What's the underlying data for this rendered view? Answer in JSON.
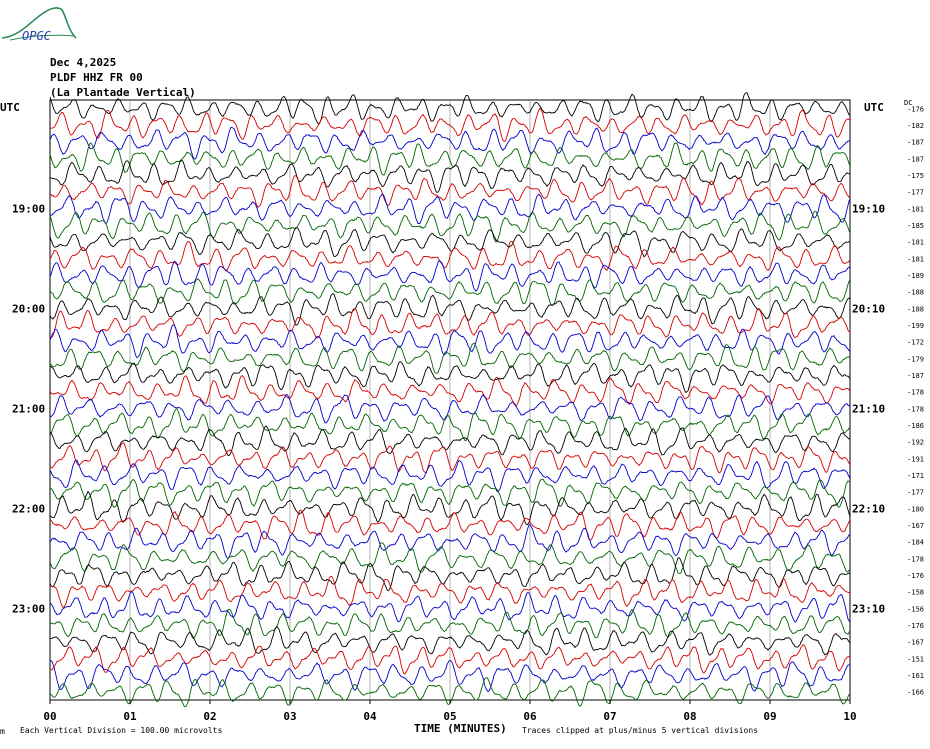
{
  "logo": {
    "text": "OPGC",
    "color": "#2e8b57",
    "text_color": "#2244aa"
  },
  "header": {
    "date": "Dec 4,2025",
    "station": "PLDF HHZ FR 00",
    "location": "(La Plantade Vertical)"
  },
  "left_unit": "UTC",
  "right_unit": "UTC",
  "dc_label": "DC",
  "footer": {
    "division": "Each Vertical Division =  100.00 microvolts",
    "xlabel": "TIME (MINUTES)",
    "clip_note": "Traces clipped at plus/minus 5 vertical divisions",
    "corner_mark": "m"
  },
  "chart_data": {
    "type": "line",
    "title": "",
    "xlabel": "TIME (MINUTES)",
    "ylabel": "",
    "x_ticks": [
      "00",
      "01",
      "02",
      "03",
      "04",
      "05",
      "06",
      "07",
      "08",
      "09",
      "10"
    ],
    "xlim": [
      0,
      10
    ],
    "trace_minutes": 10,
    "left_hour_labels": [
      {
        "row": 6,
        "label": "19:00"
      },
      {
        "row": 12,
        "label": "20:00"
      },
      {
        "row": 18,
        "label": "21:00"
      },
      {
        "row": 24,
        "label": "22:00"
      },
      {
        "row": 30,
        "label": "23:00"
      }
    ],
    "right_hour_labels": [
      {
        "row": 6,
        "label": "19:10"
      },
      {
        "row": 12,
        "label": "20:10"
      },
      {
        "row": 18,
        "label": "21:10"
      },
      {
        "row": 24,
        "label": "22:10"
      },
      {
        "row": 30,
        "label": "23:10"
      }
    ],
    "dc_offsets": [
      -176,
      -182,
      -187,
      -187,
      -175,
      -177,
      -181,
      -185,
      -181,
      -181,
      -189,
      -188,
      -188,
      -199,
      -172,
      -179,
      -187,
      -178,
      -178,
      -186,
      -192,
      -191,
      -171,
      -177,
      -180,
      -167,
      -184,
      -178,
      -176,
      -158,
      -156,
      -176,
      -167,
      -151,
      -161,
      -166
    ],
    "trace_colors": [
      "#000000",
      "#d40000",
      "#0000cc",
      "#006400"
    ],
    "clip_divisions": 5,
    "units_per_division": "100.00 microvolts"
  }
}
